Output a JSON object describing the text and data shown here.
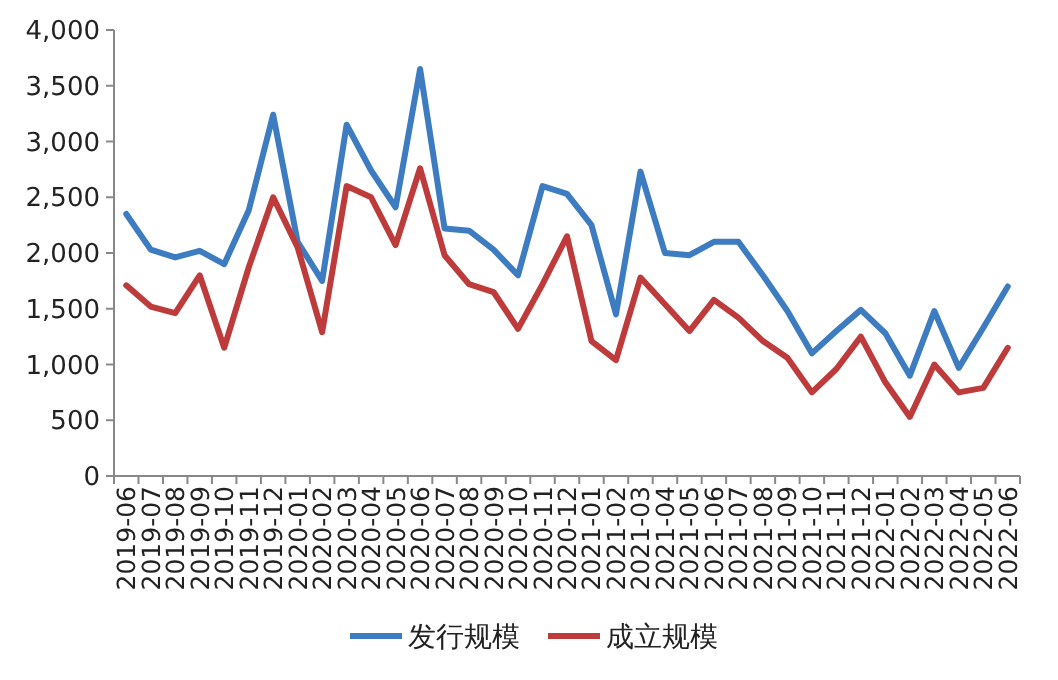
{
  "chart_data": {
    "type": "line",
    "categories": [
      "2019-06",
      "2019-07",
      "2019-08",
      "2019-09",
      "2019-10",
      "2019-11",
      "2019-12",
      "2020-01",
      "2020-02",
      "2020-03",
      "2020-04",
      "2020-05",
      "2020-06",
      "2020-07",
      "2020-08",
      "2020-09",
      "2020-10",
      "2020-11",
      "2020-12",
      "2021-01",
      "2021-02",
      "2021-03",
      "2021-04",
      "2021-05",
      "2021-06",
      "2021-07",
      "2021-08",
      "2021-09",
      "2021-10",
      "2021-11",
      "2021-12",
      "2022-01",
      "2022-02",
      "2022-03",
      "2022-04",
      "2022-05",
      "2022-06"
    ],
    "series": [
      {
        "name": "发行规模",
        "color": "#3d7cc0",
        "values": [
          2350,
          2030,
          1960,
          2020,
          1900,
          2380,
          3240,
          2100,
          1750,
          3150,
          2740,
          2410,
          3650,
          2220,
          2200,
          2030,
          1800,
          2600,
          2530,
          2250,
          1450,
          2730,
          2000,
          1980,
          2100,
          2100,
          1800,
          1480,
          1100,
          1300,
          1490,
          1280,
          900,
          1480,
          970,
          1330,
          1700
        ]
      },
      {
        "name": "成立规模",
        "color": "#be3b3b",
        "values": [
          1710,
          1520,
          1460,
          1800,
          1150,
          1870,
          2500,
          2050,
          1290,
          2600,
          2500,
          2070,
          2760,
          1980,
          1720,
          1650,
          1320,
          1720,
          2150,
          1210,
          1040,
          1780,
          1540,
          1300,
          1580,
          1420,
          1210,
          1060,
          750,
          960,
          1250,
          840,
          530,
          1000,
          750,
          790,
          1150
        ]
      }
    ],
    "ylim": [
      0,
      4000
    ],
    "yticks": [
      {
        "value": 0,
        "label": "0"
      },
      {
        "value": 500,
        "label": "500"
      },
      {
        "value": 1000,
        "label": "1,000"
      },
      {
        "value": 1500,
        "label": "1,500"
      },
      {
        "value": 2000,
        "label": "2,000"
      },
      {
        "value": 2500,
        "label": "2,500"
      },
      {
        "value": 3000,
        "label": "3,000"
      },
      {
        "value": 3500,
        "label": "3,500"
      },
      {
        "value": 4000,
        "label": "4,000"
      }
    ],
    "grid": false,
    "legend": "bottom",
    "marker": "none",
    "line_style": "solid"
  }
}
